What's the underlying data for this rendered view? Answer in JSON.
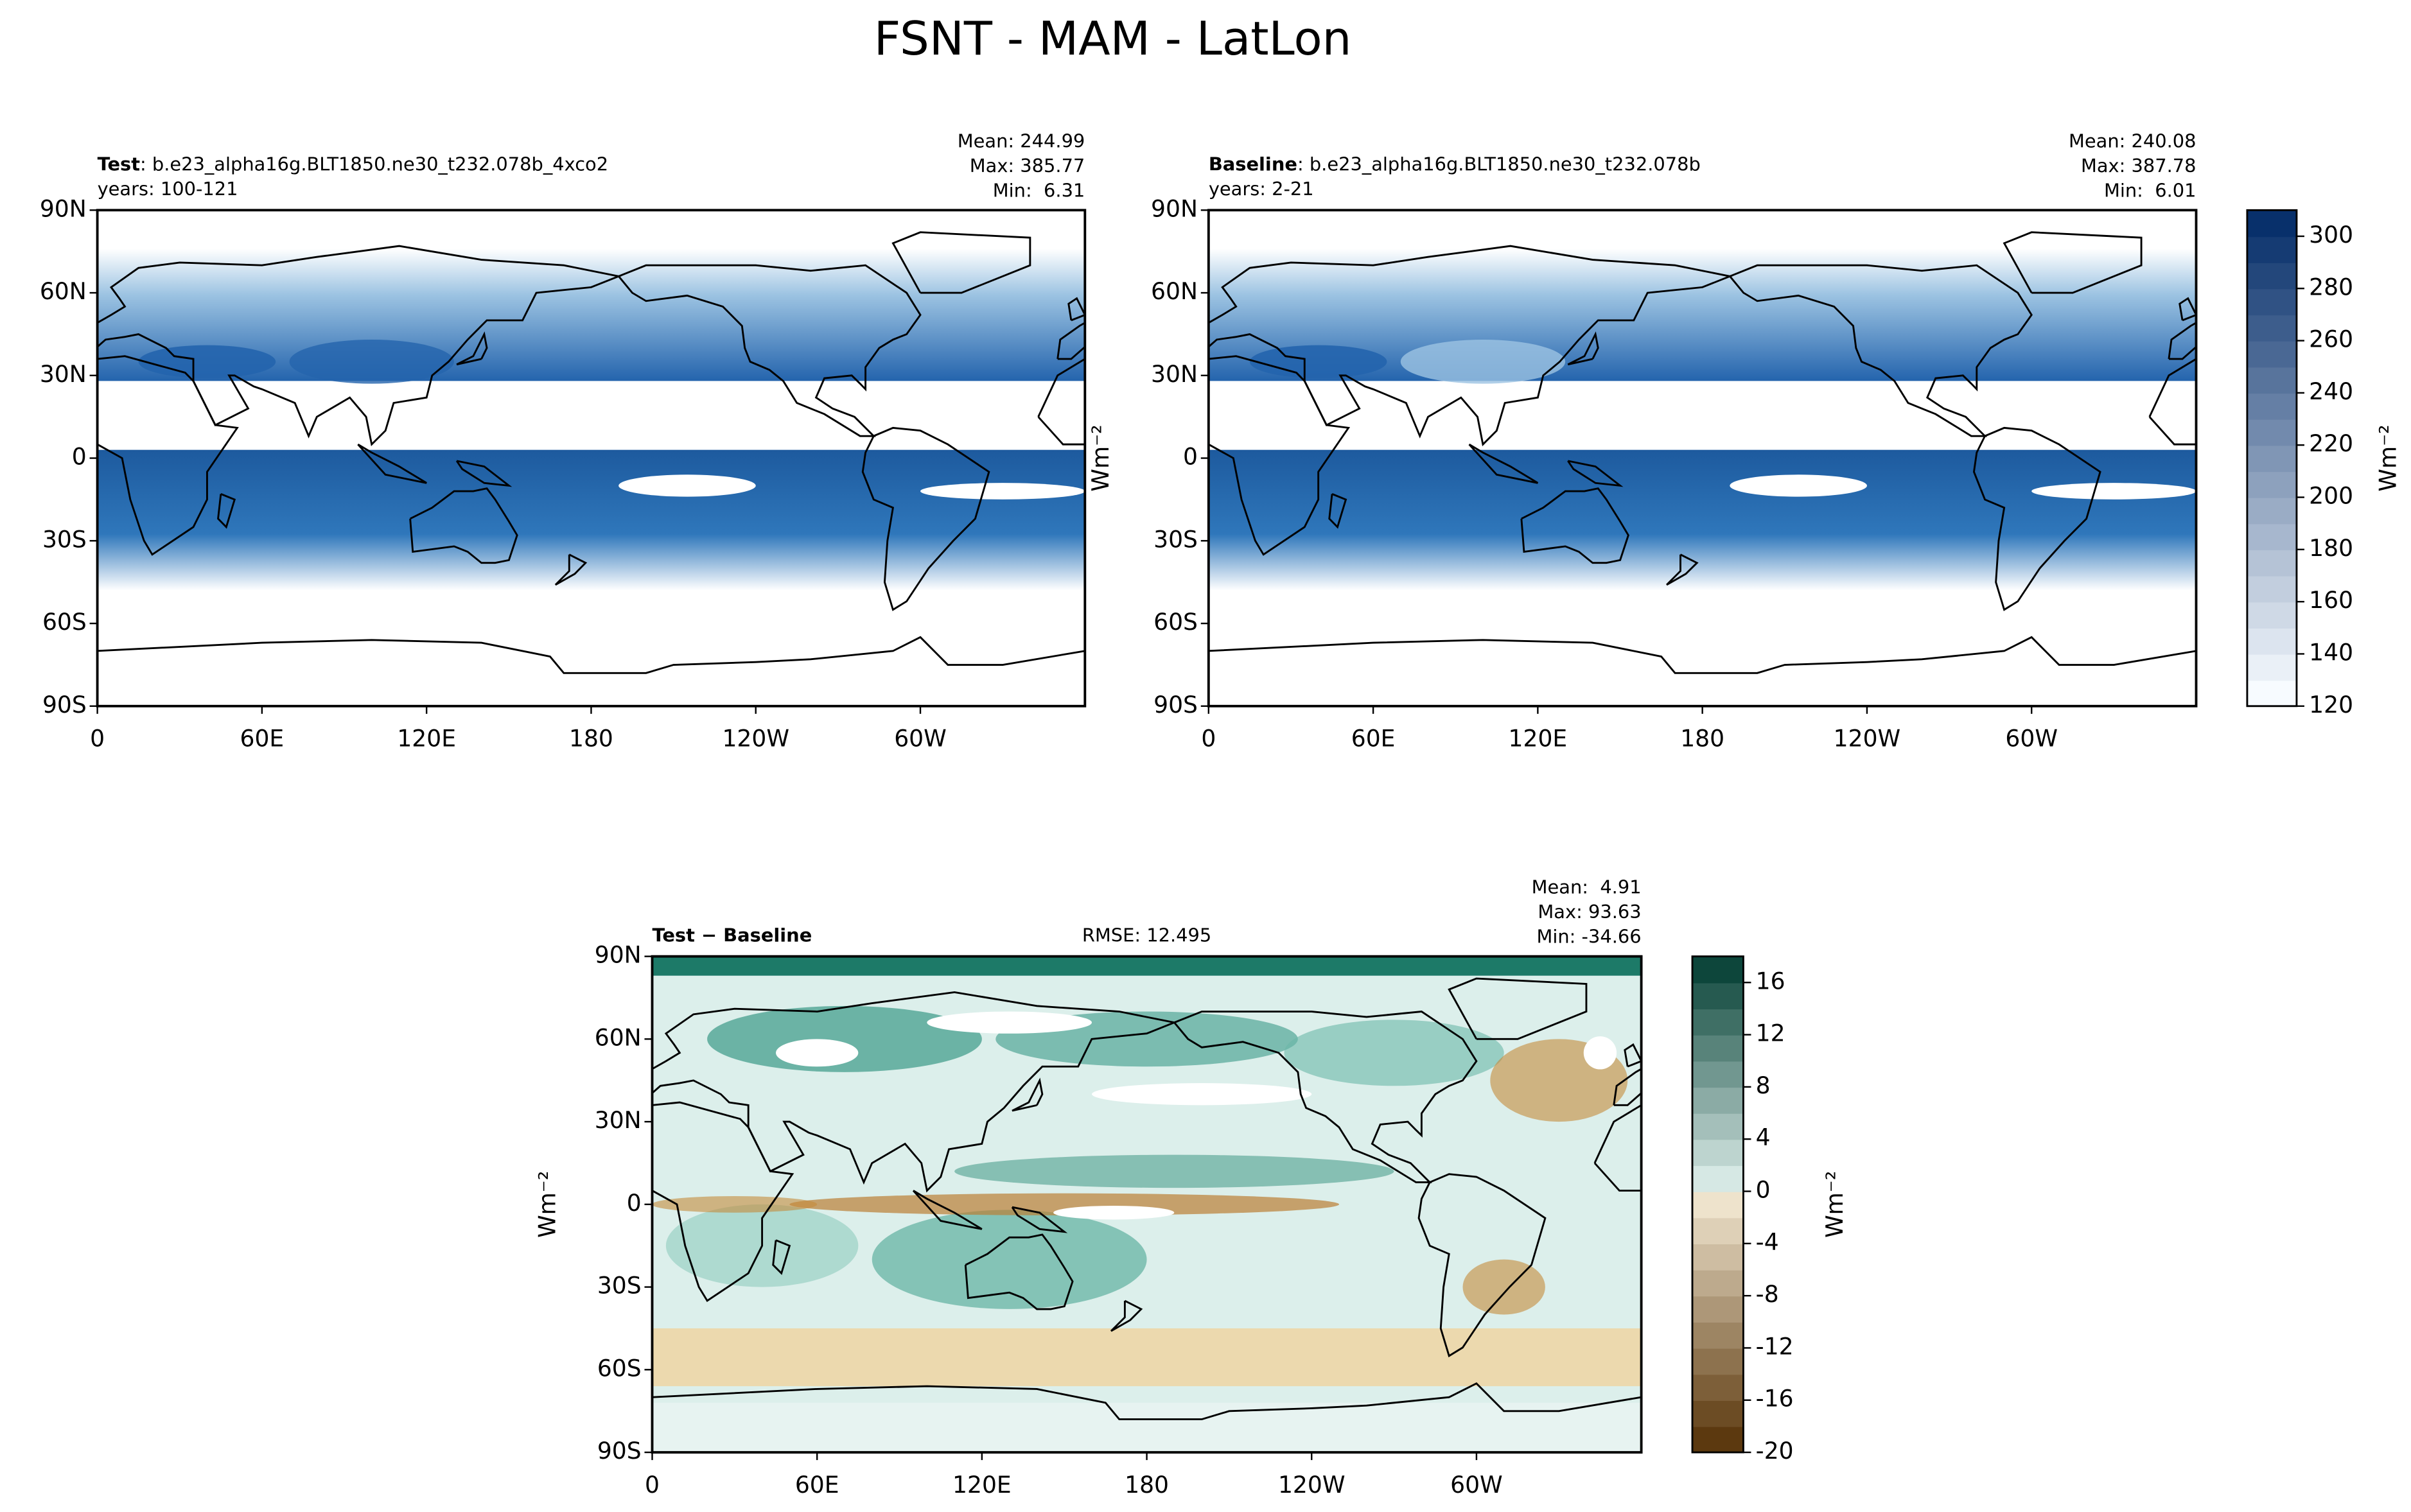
{
  "title": "FSNT - MAM - LatLon",
  "lat_ticks": [
    "90N",
    "60N",
    "30N",
    "0",
    "30S",
    "60S",
    "90S"
  ],
  "lon_ticks": [
    "0",
    "60E",
    "120E",
    "180",
    "120W",
    "60W"
  ],
  "panels": [
    {
      "name": "Test",
      "case": ": b.e23_alpha16g.BLT1850.ne30_t232.078b_4xco2",
      "years": "years: 100-121",
      "stats": [
        "Mean: 244.99",
        "Max: 385.77",
        "Min:  6.31"
      ]
    },
    {
      "name": "Baseline",
      "case": ": b.e23_alpha16g.BLT1850.ne30_t232.078b",
      "years": "years: 2-21",
      "stats": [
        "Mean: 240.08",
        "Max: 387.78",
        "Min:  6.01"
      ],
      "units": "Wm⁻²"
    },
    {
      "name": "Test − Baseline",
      "rmse": "RMSE: 12.495",
      "stats": [
        "Mean:  4.91",
        "Max: 93.63",
        "Min: -34.66"
      ],
      "units": "Wm⁻²"
    }
  ],
  "colorbars": [
    {
      "range": [
        120,
        310
      ],
      "ticks": [
        120,
        140,
        160,
        180,
        200,
        220,
        240,
        260,
        280,
        300
      ],
      "units": "Wm⁻²"
    },
    {
      "range": [
        -20,
        18
      ],
      "ticks": [
        -20,
        -16,
        -12,
        -8,
        -4,
        0,
        4,
        8,
        12,
        16
      ],
      "units": "Wm⁻²"
    }
  ]
}
